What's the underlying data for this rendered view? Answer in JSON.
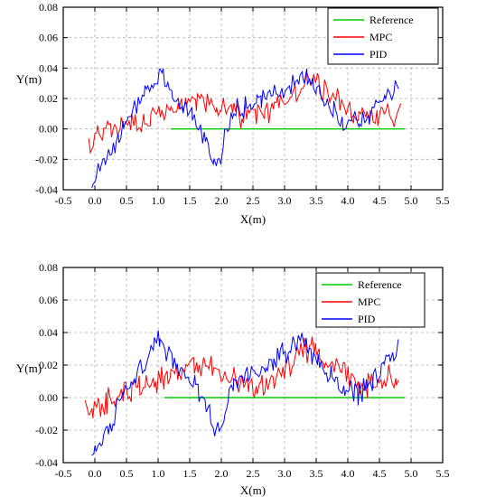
{
  "chart_data": [
    {
      "type": "line",
      "xlabel": "X(m)",
      "ylabel": "Y(m)",
      "xlim": [
        -0.5,
        5.5
      ],
      "ylim": [
        -0.04,
        0.08
      ],
      "xticks": [
        "-0.5",
        "0.0",
        "0.5",
        "1.0",
        "1.5",
        "2.0",
        "2.5",
        "3.0",
        "3.5",
        "4.0",
        "4.5",
        "5.0",
        "5.5"
      ],
      "yticks": [
        "-0.04",
        "-0.02",
        "0.00",
        "0.02",
        "0.04",
        "0.06",
        "0.08"
      ],
      "grid": true,
      "legend": "top-right",
      "series": [
        {
          "name": "Reference",
          "color": "#00cc00",
          "x": [
            1.2,
            4.9
          ],
          "y": [
            0,
            0
          ]
        },
        {
          "name": "MPC",
          "color": "#ff0000",
          "x": [
            -0.1,
            0.3,
            0.6,
            1.0,
            1.4,
            1.8,
            2.2,
            2.6,
            3.0,
            3.4,
            3.8,
            4.2,
            4.6,
            4.85
          ],
          "y": [
            -0.008,
            0.001,
            0.004,
            0.01,
            0.017,
            0.02,
            0.01,
            0.008,
            0.02,
            0.032,
            0.018,
            0.008,
            0.012,
            0.01
          ]
        },
        {
          "name": "PID",
          "color": "#0000ff",
          "x": [
            -0.05,
            0.2,
            0.5,
            0.8,
            1.05,
            1.3,
            1.6,
            1.8,
            1.95,
            2.2,
            2.5,
            2.8,
            3.1,
            3.35,
            3.6,
            3.9,
            4.2,
            4.5,
            4.8
          ],
          "y": [
            -0.035,
            -0.02,
            0.008,
            0.025,
            0.035,
            0.018,
            0.005,
            -0.012,
            -0.022,
            0.012,
            0.018,
            0.022,
            0.03,
            0.035,
            0.02,
            0.005,
            0.005,
            0.015,
            0.03
          ]
        }
      ]
    },
    {
      "type": "line",
      "xlabel": "X(m)",
      "ylabel": "Y(m)",
      "xlim": [
        -0.5,
        5.5
      ],
      "ylim": [
        -0.04,
        0.08
      ],
      "xticks": [
        "-0.5",
        "0.0",
        "0.5",
        "1.0",
        "1.5",
        "2.0",
        "2.5",
        "3.0",
        "3.5",
        "4.0",
        "4.5",
        "5.0",
        "5.5"
      ],
      "yticks": [
        "-0.04",
        "-0.02",
        "0.00",
        "0.02",
        "0.04",
        "0.06",
        "0.08"
      ],
      "grid": true,
      "legend": "top-right",
      "series": [
        {
          "name": "Reference",
          "color": "#00cc00",
          "x": [
            1.1,
            4.9
          ],
          "y": [
            0,
            0
          ]
        },
        {
          "name": "MPC",
          "color": "#ff0000",
          "x": [
            -0.15,
            0.3,
            0.6,
            1.0,
            1.4,
            1.8,
            2.2,
            2.6,
            3.0,
            3.4,
            3.8,
            4.2,
            4.6,
            4.8
          ],
          "y": [
            -0.008,
            0.0,
            0.004,
            0.01,
            0.015,
            0.02,
            0.01,
            0.005,
            0.018,
            0.03,
            0.018,
            0.008,
            0.012,
            0.01
          ]
        },
        {
          "name": "PID",
          "color": "#0000ff",
          "x": [
            -0.05,
            0.2,
            0.5,
            0.8,
            1.0,
            1.3,
            1.6,
            1.8,
            2.0,
            2.2,
            2.5,
            2.8,
            3.1,
            3.3,
            3.6,
            3.9,
            4.2,
            4.5,
            4.8
          ],
          "y": [
            -0.035,
            -0.02,
            0.005,
            0.022,
            0.035,
            0.02,
            0.008,
            -0.01,
            -0.022,
            0.01,
            0.015,
            0.022,
            0.03,
            0.035,
            0.02,
            0.005,
            0.003,
            0.015,
            0.03
          ]
        }
      ]
    }
  ]
}
